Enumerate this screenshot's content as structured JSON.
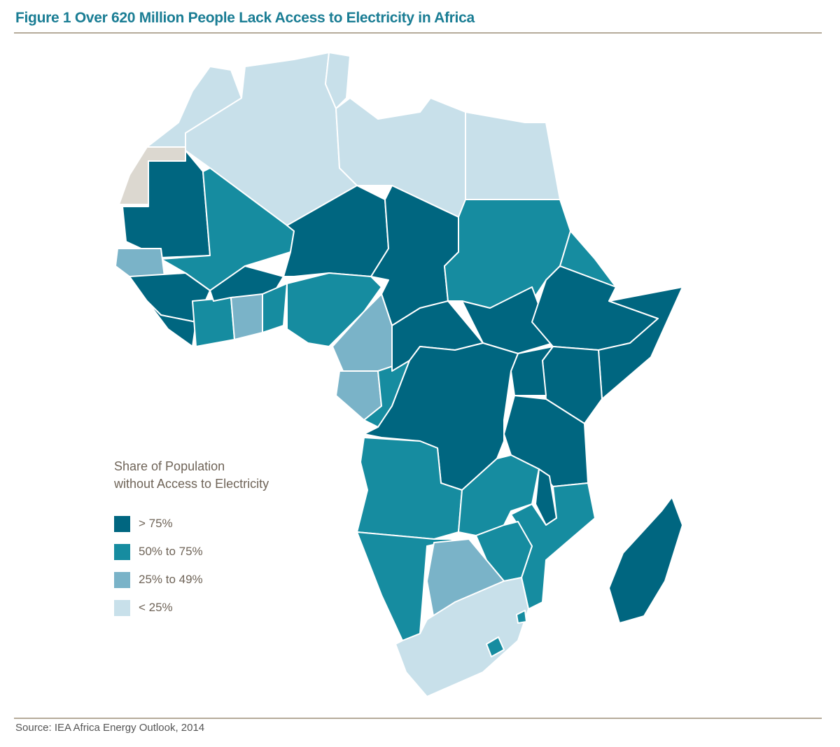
{
  "title": "Figure 1  Over 620 Million People Lack Access to Electricity in Africa",
  "legend": {
    "title_line1": "Share of Population",
    "title_line2": "without Access to Electricity",
    "items": [
      {
        "label": "> 75%",
        "color": "#006680"
      },
      {
        "label": "50% to 75%",
        "color": "#168ca0"
      },
      {
        "label": "25% to 49%",
        "color": "#7ab3c8"
      },
      {
        "label": "< 25%",
        "color": "#c8e0ea"
      }
    ]
  },
  "no_data_color": "#dcd8d0",
  "source": "Source: IEA Africa Energy Outlook, 2014"
}
